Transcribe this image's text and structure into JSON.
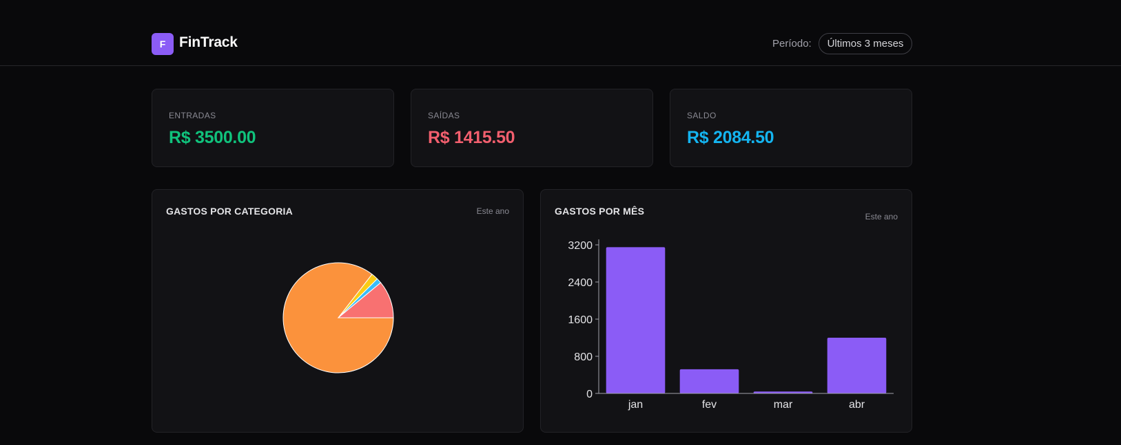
{
  "header": {
    "logo_letter": "F",
    "app_name": "FinTrack",
    "period_label": "Período:",
    "period_value": "Últimos 3 meses"
  },
  "stats": [
    {
      "label": "ENTRADAS",
      "value": "R$ 3500.00",
      "color": "#10c27c"
    },
    {
      "label": "SAÍDAS",
      "value": "R$ 1415.50",
      "color": "#f25f6e"
    },
    {
      "label": "SALDO",
      "value": "R$ 2084.50",
      "color": "#14b4f0"
    }
  ],
  "category_panel": {
    "title": "GASTOS POR CATEGORIA",
    "subtitle": "Este ano"
  },
  "month_panel": {
    "title": "GASTOS POR MÊS",
    "subtitle": "Este ano"
  },
  "chart_data": [
    {
      "type": "pie",
      "slices": [
        {
          "value": 85.5,
          "color": "#fb923c"
        },
        {
          "value": 2.0,
          "color": "#facc15"
        },
        {
          "value": 1.5,
          "color": "#38bdf8"
        },
        {
          "value": 11.0,
          "color": "#f87171"
        }
      ]
    },
    {
      "type": "bar",
      "categories": [
        "jan",
        "fev",
        "mar",
        "abr"
      ],
      "values": [
        3150,
        520,
        40,
        1200
      ],
      "ylim": [
        0,
        3200
      ],
      "yticks": [
        0,
        800,
        1600,
        2400,
        3200
      ],
      "bar_color": "#8b5cf6"
    }
  ]
}
